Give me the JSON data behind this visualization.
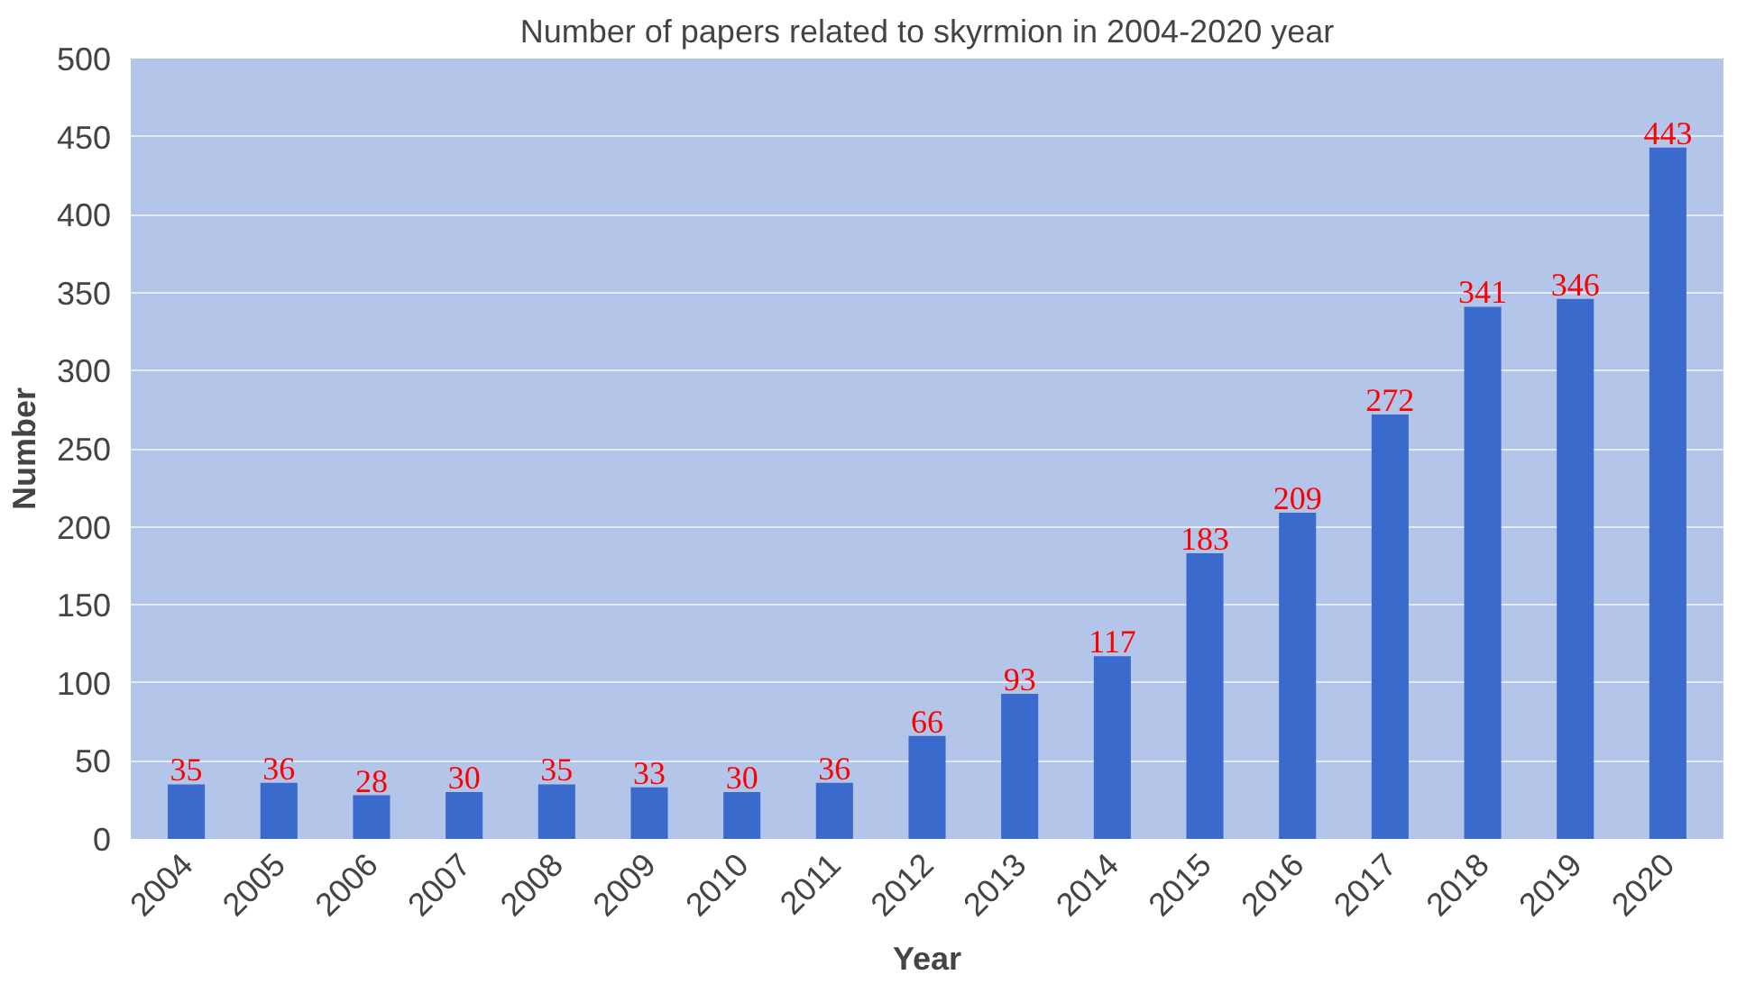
{
  "chart_data": {
    "type": "bar",
    "title": "Number of papers related to skyrmion in 2004-2020 year",
    "xlabel": "Year",
    "ylabel": "Number",
    "categories": [
      "2004",
      "2005",
      "2006",
      "2007",
      "2008",
      "2009",
      "2010",
      "2011",
      "2012",
      "2013",
      "2014",
      "2015",
      "2016",
      "2017",
      "2018",
      "2019",
      "2020"
    ],
    "values": [
      35,
      36,
      28,
      30,
      35,
      33,
      30,
      36,
      66,
      93,
      117,
      183,
      209,
      272,
      341,
      346,
      443
    ],
    "color": "#3a6acb",
    "ylim": [
      0,
      500
    ],
    "yticks": [
      0,
      50,
      100,
      150,
      200,
      250,
      300,
      350,
      400,
      450,
      500
    ],
    "grid": "y",
    "data_labels": true
  }
}
